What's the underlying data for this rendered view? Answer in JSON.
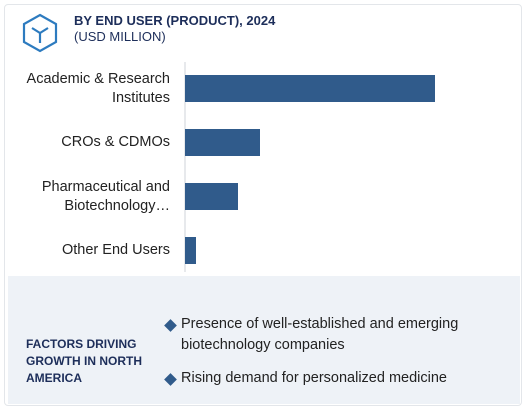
{
  "chart_data": {
    "type": "bar",
    "orientation": "horizontal",
    "title": "BY END USER (PRODUCT), 2024",
    "subtitle": "(USD MILLION)",
    "categories": [
      "Academic & Research Institutes",
      "CROs & CDMOs",
      "Pharmaceutical and Biotechnology…",
      "Other End Users"
    ],
    "values": [
      250,
      75,
      53,
      11
    ],
    "color": "#305b8b",
    "xlim": [
      0,
      335
    ]
  },
  "factors": {
    "heading": "FACTORS DRIVING GROWTH IN NORTH AMERICA",
    "items": [
      "Presence of well-established and emerging biotechnology companies",
      "Rising demand for personalized medicine"
    ]
  }
}
